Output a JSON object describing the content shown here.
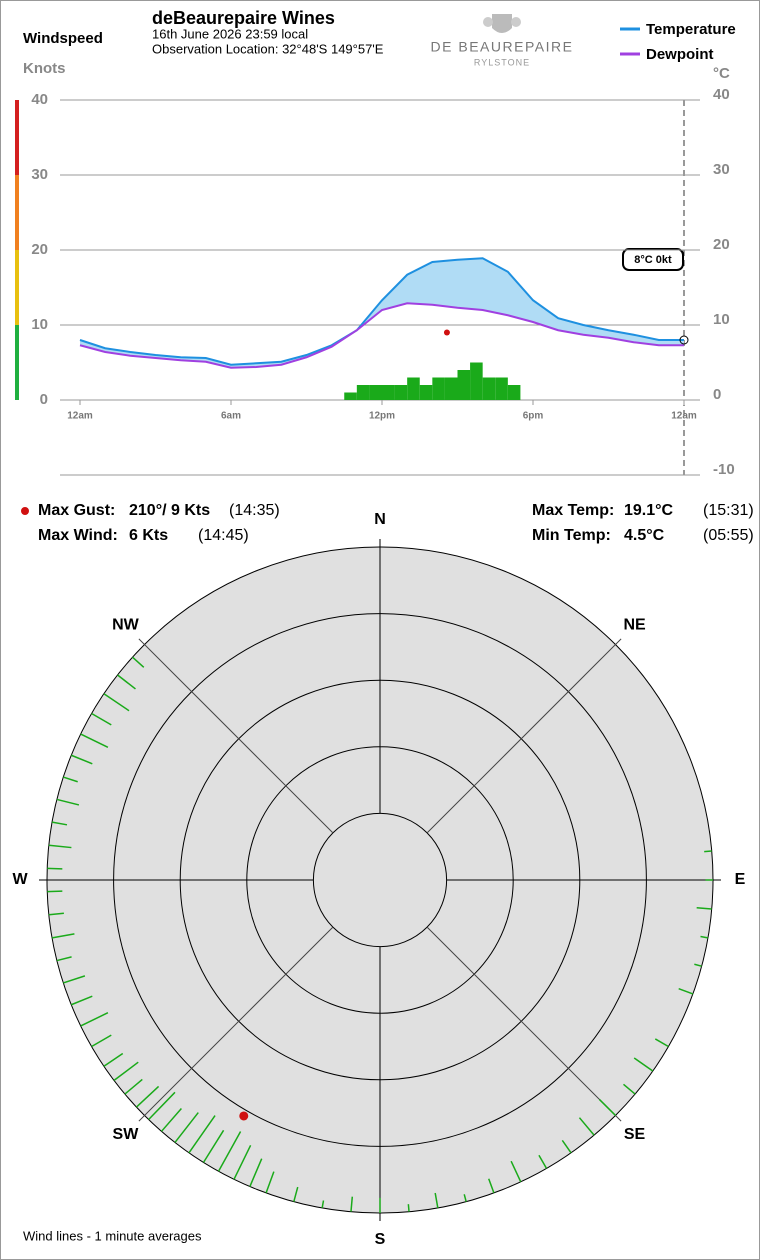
{
  "header": {
    "title": "deBeaurepaire Wines",
    "date": "16th June 2026  23:59 local",
    "location": "Observation Location: 32°48'S 149°57'E",
    "logo": "DE BEAUREPAIRE",
    "logo_sub": "RYLSTONE"
  },
  "stats": {
    "gust_label": "Max Gust:",
    "gust_value": "210°/ 9 Kts",
    "gust_time": "(14:35)",
    "wind_label": "Max Wind:",
    "wind_value": "6 Kts",
    "wind_time": "(14:45)",
    "max_temp_label": "Max Temp:",
    "max_temp_value": "19.1°C",
    "max_temp_time": "(15:31)",
    "min_temp_label": "Min Temp:",
    "min_temp_value": "4.5°C",
    "min_temp_time": "(05:55)"
  },
  "chart_data": [
    {
      "type": "line",
      "y_title": "Windspeed",
      "y_unit": "Knots",
      "y2_unit": "°C",
      "current_label": "8°C  0kt",
      "x": [
        0,
        1,
        2,
        3,
        4,
        5,
        6,
        7,
        8,
        9,
        10,
        11,
        12,
        13,
        14,
        15,
        16,
        17,
        18,
        19,
        20,
        21,
        22,
        23,
        24
      ],
      "xlim": [
        0,
        24
      ],
      "xticks": [
        {
          "value": 0,
          "label": "12am"
        },
        {
          "value": 6,
          "label": "6am"
        },
        {
          "value": 12,
          "label": "12pm"
        },
        {
          "value": 18,
          "label": "6pm"
        },
        {
          "value": 24,
          "label": "12am"
        }
      ],
      "ylim": [
        0,
        40
      ],
      "yticks": [
        0,
        10,
        20,
        30,
        40
      ],
      "y2lim": [
        -10,
        40
      ],
      "y2ticks": [
        -10,
        0,
        10,
        20,
        30,
        40
      ],
      "grid": true,
      "legend": "top-right",
      "series": [
        {
          "name": "Temperature",
          "color": "#1e90e0",
          "axis": "y2",
          "values": [
            8.0,
            6.9,
            6.4,
            6.0,
            5.7,
            5.6,
            4.7,
            4.9,
            5.1,
            6.0,
            7.3,
            9.3,
            13.3,
            16.7,
            18.4,
            18.7,
            18.9,
            17.1,
            13.3,
            10.9,
            10.0,
            9.3,
            8.7,
            8.0,
            8.0
          ]
        },
        {
          "name": "Dewpoint",
          "color": "#a040e0",
          "axis": "y2",
          "values": [
            7.3,
            6.4,
            5.9,
            5.6,
            5.3,
            5.1,
            4.3,
            4.4,
            4.7,
            5.7,
            7.1,
            9.3,
            12.0,
            12.9,
            12.7,
            12.3,
            12.0,
            11.3,
            10.4,
            9.3,
            8.7,
            8.3,
            7.7,
            7.3,
            7.3
          ]
        }
      ],
      "fill_color": "#b0dcf5",
      "wind": {
        "color": "#1aaa1a",
        "x": [
          10.5,
          11,
          11.5,
          12,
          12.5,
          13,
          13.5,
          14,
          14.5,
          15,
          15.5,
          16,
          16.5,
          17
        ],
        "values": [
          1,
          2,
          2,
          2,
          2,
          3,
          2,
          3,
          3,
          4,
          5,
          3,
          3,
          2
        ]
      },
      "gust": {
        "x": 14.58,
        "value": 9,
        "color": "#d01010"
      }
    },
    {
      "type": "polar",
      "rlim": [
        0,
        11
      ],
      "background": "#e0e0e0",
      "color": "#1aaa1a",
      "labels": [
        "N",
        "NE",
        "E",
        "SE",
        "S",
        "SW",
        "W",
        "NW"
      ],
      "directions": [
        85,
        90,
        95,
        100,
        105,
        110,
        120,
        125,
        130,
        135,
        140,
        145,
        150,
        155,
        160,
        165,
        170,
        175,
        180,
        185,
        190,
        195,
        200,
        203,
        206,
        209,
        212,
        215,
        218,
        221,
        224,
        227,
        230,
        233,
        236,
        240,
        244,
        248,
        252,
        256,
        260,
        264,
        268,
        272,
        276,
        280,
        284,
        288,
        292,
        296,
        300,
        304,
        308,
        312
      ],
      "speeds": [
        1,
        1,
        2,
        1,
        1,
        2,
        2,
        3,
        2,
        3,
        3,
        2,
        2,
        3,
        2,
        1,
        2,
        1,
        2,
        2,
        1,
        2,
        3,
        4,
        5,
        6,
        5,
        6,
        5,
        4,
        5,
        4,
        3,
        4,
        3,
        3,
        4,
        3,
        3,
        2,
        3,
        2,
        2,
        2,
        3,
        2,
        3,
        2,
        3,
        4,
        3,
        4,
        3,
        2
      ],
      "gust": {
        "direction": 210,
        "value": 9,
        "color": "#d01010"
      },
      "footnote": "Wind lines - 1 minute averages"
    }
  ]
}
